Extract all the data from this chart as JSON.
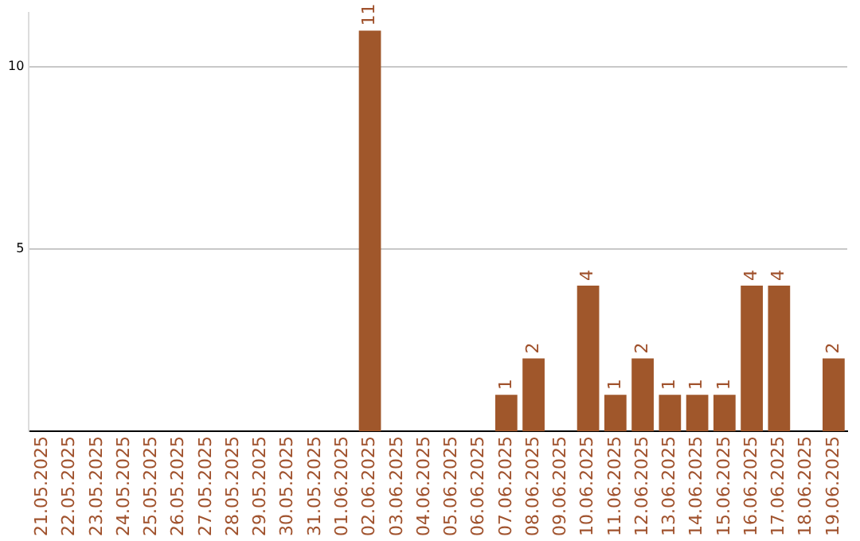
{
  "chart_data": {
    "type": "bar",
    "categories": [
      "21.05.2025",
      "22.05.2025",
      "23.05.2025",
      "24.05.2025",
      "25.05.2025",
      "26.05.2025",
      "27.05.2025",
      "28.05.2025",
      "29.05.2025",
      "30.05.2025",
      "31.05.2025",
      "01.06.2025",
      "02.06.2025",
      "03.06.2025",
      "04.06.2025",
      "05.06.2025",
      "06.06.2025",
      "07.06.2025",
      "08.06.2025",
      "09.06.2025",
      "10.06.2025",
      "11.06.2025",
      "12.06.2025",
      "13.06.2025",
      "14.06.2025",
      "15.06.2025",
      "16.06.2025",
      "17.06.2025",
      "18.06.2025",
      "19.06.2025"
    ],
    "values": [
      0,
      0,
      0,
      0,
      0,
      0,
      0,
      0,
      0,
      0,
      0,
      0,
      11,
      0,
      0,
      0,
      0,
      1,
      2,
      0,
      4,
      1,
      2,
      1,
      1,
      1,
      4,
      4,
      0,
      2
    ],
    "value_labels": [
      null,
      null,
      null,
      null,
      null,
      null,
      null,
      null,
      null,
      null,
      null,
      null,
      "11",
      null,
      null,
      null,
      null,
      "1",
      "2",
      null,
      "4",
      "1",
      "2",
      "1",
      "1",
      "1",
      "4",
      "4",
      null,
      "2"
    ],
    "color": "#a0572b",
    "ylim": [
      0,
      11.5
    ],
    "yticks": [
      5,
      10
    ],
    "grid": "y",
    "legend": false
  }
}
